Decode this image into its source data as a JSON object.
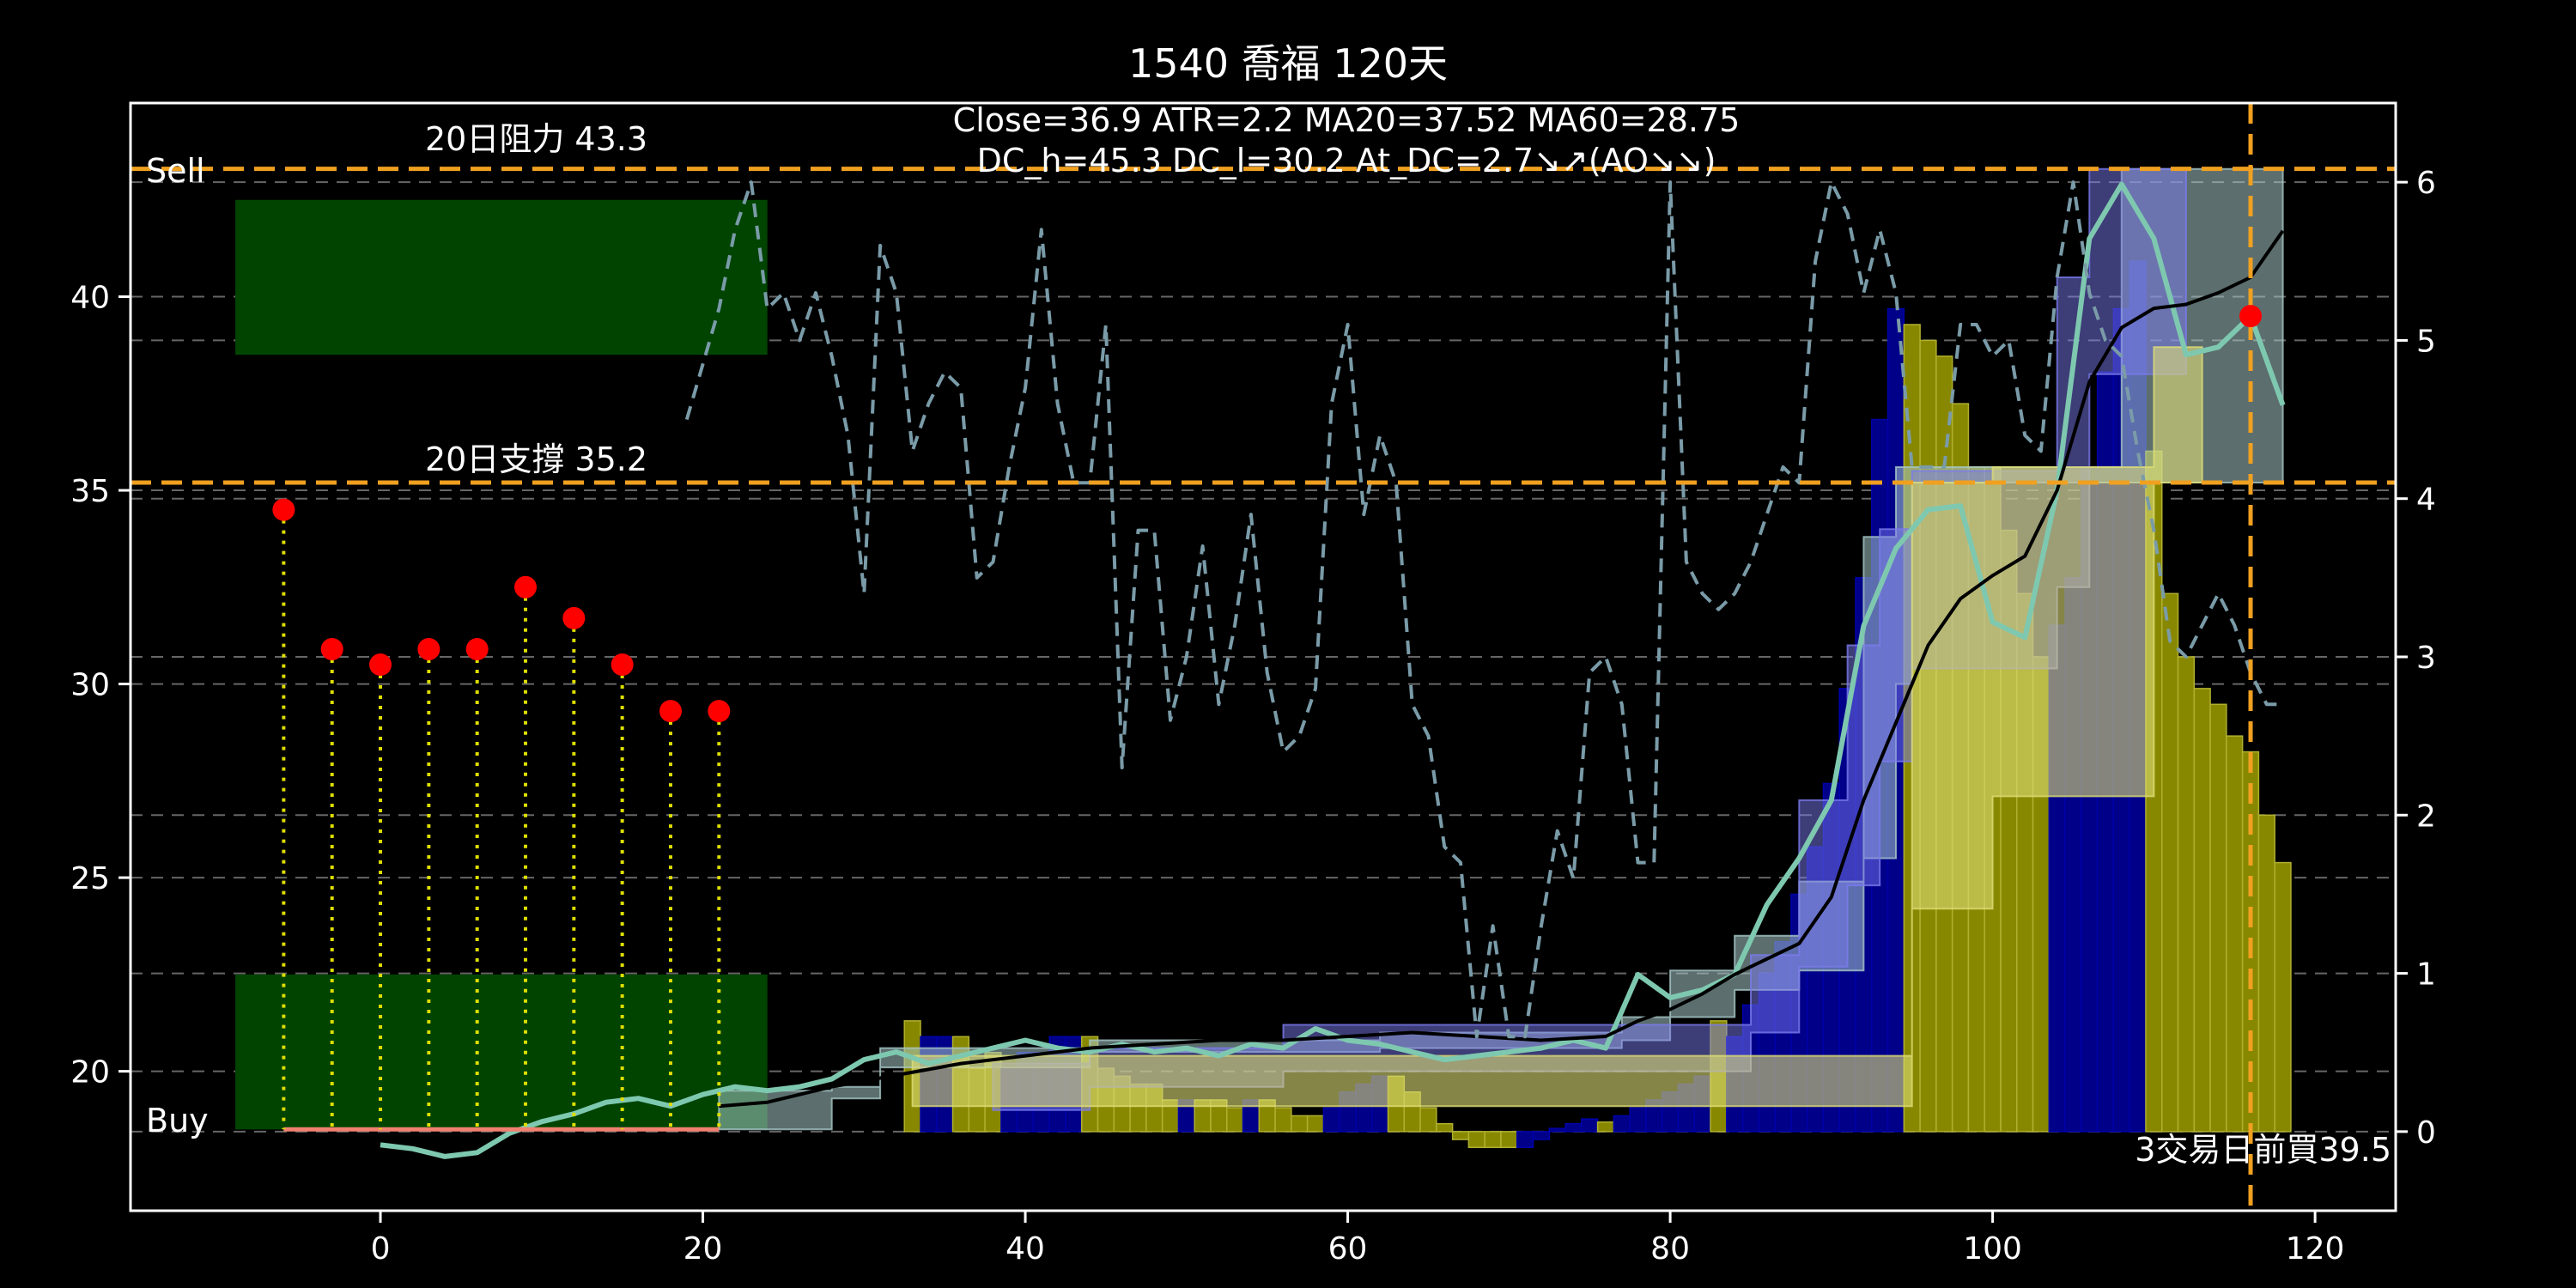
{
  "chart_data": {
    "type": "line",
    "title": "1540 喬福 120天",
    "stats": [
      "Close=36.9 ATR=2.2 MA20=37.52 MA60=28.75",
      "DC_h=45.3 DC_l=30.2 At_DC=2.7↘↗(AO↘↘)"
    ],
    "x_ticks": [
      0,
      20,
      40,
      60,
      80,
      100,
      120
    ],
    "y_left_ticks": [
      20,
      25,
      30,
      35,
      40
    ],
    "y_right_ticks": [
      0,
      1,
      2,
      3,
      4,
      5,
      6
    ],
    "xlim": [
      -15.5,
      125
    ],
    "ylim_left": [
      16.4,
      45
    ],
    "ylim_right": [
      -0.5,
      6.5
    ],
    "grid": "horizontal dashed",
    "resistance": {
      "value": 43.3,
      "label": "20日阻力 43.3"
    },
    "support": {
      "value": 35.2,
      "label": "20日支撐 35.2"
    },
    "zones": [
      {
        "label": "Sell",
        "x0": -9,
        "x1": 24,
        "y0": 38.5,
        "y1": 42.5,
        "color": "#004400"
      },
      {
        "label": "Buy",
        "x0": -9,
        "x1": 24,
        "y0": 18.5,
        "y1": 22.5,
        "color": "#004400"
      }
    ],
    "buy_note": "3交易日前買39.5",
    "buy_day": 116,
    "buy_price": 39.5,
    "red_points": {
      "x": [
        -6,
        -3,
        0,
        3,
        6,
        9,
        12,
        15,
        18,
        21
      ],
      "y": [
        34.5,
        30.9,
        30.5,
        30.9,
        30.9,
        32.5,
        31.7,
        30.5,
        29.3,
        29.3
      ]
    },
    "baseline": {
      "x": [
        -6,
        21
      ],
      "y": 18.5
    },
    "series": [
      {
        "role": "close",
        "color": "#7ec8b0",
        "axis": "left",
        "x": [
          0,
          2,
          4,
          6,
          8,
          10,
          12,
          14,
          16,
          18,
          20,
          22,
          24,
          26,
          28,
          30,
          32,
          34,
          36,
          38,
          40,
          42,
          44,
          46,
          48,
          50,
          52,
          54,
          56,
          58,
          60,
          62,
          64,
          66,
          68,
          70,
          72,
          74,
          76,
          78,
          80,
          82,
          84,
          86,
          88,
          90,
          92,
          94,
          96,
          98,
          100,
          102,
          104,
          106,
          108,
          110,
          112,
          114,
          116,
          118
        ],
        "y": [
          18.1,
          18.0,
          17.8,
          17.9,
          18.4,
          18.7,
          18.9,
          19.2,
          19.3,
          19.1,
          19.4,
          19.6,
          19.5,
          19.6,
          19.8,
          20.3,
          20.5,
          20.2,
          20.4,
          20.6,
          20.8,
          20.6,
          20.5,
          20.7,
          20.5,
          20.6,
          20.4,
          20.7,
          20.6,
          21.1,
          20.8,
          20.7,
          20.5,
          20.3,
          20.4,
          20.5,
          20.6,
          20.8,
          20.6,
          22.5,
          21.9,
          22.1,
          22.5,
          24.3,
          25.5,
          27.0,
          31.5,
          33.5,
          34.5,
          34.6,
          31.6,
          31.2,
          35.0,
          41.5,
          42.9,
          41.5,
          38.5,
          38.7,
          39.5,
          37.2
        ]
      },
      {
        "role": "ma",
        "color": "#000000",
        "axis": "left",
        "x": [
          21,
          24,
          28,
          32,
          36,
          40,
          44,
          48,
          52,
          56,
          60,
          64,
          68,
          72,
          76,
          78,
          80,
          82,
          84,
          86,
          88,
          90,
          92,
          94,
          96,
          98,
          100,
          102,
          104,
          106,
          108,
          110,
          112,
          114,
          116,
          118
        ],
        "y": [
          19.1,
          19.2,
          19.6,
          19.9,
          20.2,
          20.4,
          20.6,
          20.7,
          20.8,
          20.8,
          20.9,
          21.0,
          20.9,
          20.8,
          20.9,
          21.3,
          21.6,
          22.0,
          22.5,
          22.9,
          23.3,
          24.5,
          27.0,
          29.0,
          31.0,
          32.2,
          32.8,
          33.3,
          35.0,
          37.8,
          39.2,
          39.7,
          39.8,
          40.1,
          40.5,
          41.7
        ]
      },
      {
        "role": "atr",
        "color": "#7a9ba8",
        "axis": "right",
        "dash": true,
        "x": [
          19,
          21,
          22,
          23,
          24,
          25,
          26,
          27,
          28,
          29,
          30,
          31,
          32,
          33,
          34,
          35,
          36,
          37,
          38,
          39,
          40,
          41,
          42,
          43,
          44,
          45,
          46,
          47,
          48,
          49,
          50,
          51,
          52,
          53,
          54,
          55,
          56,
          57,
          58,
          59,
          60,
          61,
          62,
          63,
          64,
          65,
          66,
          67,
          68,
          69,
          70,
          71,
          72,
          73,
          74,
          75,
          76,
          77,
          78,
          79,
          80,
          81,
          82,
          83,
          84,
          85,
          86,
          87,
          88,
          89,
          90,
          91,
          92,
          93,
          94,
          95,
          96,
          97,
          98,
          99,
          100,
          101,
          102,
          103,
          104,
          105,
          106,
          107,
          108,
          109,
          110,
          111,
          112,
          113,
          114,
          115,
          116,
          117,
          118
        ],
        "y": [
          4.5,
          5.2,
          5.7,
          6.0,
          5.2,
          5.3,
          5.0,
          5.3,
          4.9,
          4.4,
          3.4,
          5.6,
          5.3,
          4.3,
          4.6,
          4.8,
          4.7,
          3.5,
          3.6,
          4.2,
          4.7,
          5.7,
          4.6,
          4.1,
          4.1,
          5.1,
          2.3,
          3.8,
          3.8,
          2.6,
          3.0,
          3.7,
          2.7,
          3.2,
          3.9,
          2.9,
          2.4,
          2.5,
          2.8,
          4.6,
          5.1,
          3.9,
          4.4,
          4.1,
          2.7,
          2.5,
          1.8,
          1.7,
          0.6,
          1.3,
          0.6,
          0.6,
          1.3,
          1.9,
          1.6,
          2.9,
          3.0,
          2.7,
          1.7,
          1.7,
          6.0,
          3.6,
          3.4,
          3.3,
          3.4,
          3.6,
          3.9,
          4.2,
          4.1,
          5.5,
          6.0,
          5.8,
          5.3,
          5.7,
          5.3,
          4.2,
          4.2,
          4.2,
          5.1,
          5.1,
          4.9,
          5.0,
          4.4,
          4.3,
          5.4,
          6.0,
          5.3,
          5.0,
          4.9,
          4.3,
          3.8,
          3.1,
          3.0,
          3.2,
          3.4,
          3.2,
          2.9,
          2.7,
          2.7
        ]
      }
    ],
    "hist_bars": [
      {
        "x": 33,
        "v": 0.7,
        "c": "y"
      },
      {
        "x": 34,
        "v": 0.6,
        "c": "b"
      },
      {
        "x": 35,
        "v": 0.6,
        "c": "b"
      },
      {
        "x": 36,
        "v": 0.6,
        "c": "y"
      },
      {
        "x": 37,
        "v": 0.4,
        "c": "y"
      },
      {
        "x": 38,
        "v": 0.5,
        "c": "y"
      },
      {
        "x": 39,
        "v": 0.4,
        "c": "b"
      },
      {
        "x": 40,
        "v": 0.5,
        "c": "b"
      },
      {
        "x": 41,
        "v": 0.5,
        "c": "b"
      },
      {
        "x": 42,
        "v": 0.6,
        "c": "b"
      },
      {
        "x": 43,
        "v": 0.6,
        "c": "b"
      },
      {
        "x": 44,
        "v": 0.6,
        "c": "y"
      },
      {
        "x": 45,
        "v": 0.4,
        "c": "y"
      },
      {
        "x": 46,
        "v": 0.35,
        "c": "y"
      },
      {
        "x": 47,
        "v": 0.3,
        "c": "y"
      },
      {
        "x": 48,
        "v": 0.3,
        "c": "y"
      },
      {
        "x": 49,
        "v": 0.2,
        "c": "y"
      },
      {
        "x": 50,
        "v": 0.2,
        "c": "b"
      },
      {
        "x": 51,
        "v": 0.2,
        "c": "y"
      },
      {
        "x": 52,
        "v": 0.2,
        "c": "y"
      },
      {
        "x": 53,
        "v": 0.15,
        "c": "y"
      },
      {
        "x": 54,
        "v": 0.2,
        "c": "b"
      },
      {
        "x": 55,
        "v": 0.2,
        "c": "y"
      },
      {
        "x": 56,
        "v": 0.15,
        "c": "y"
      },
      {
        "x": 57,
        "v": 0.1,
        "c": "y"
      },
      {
        "x": 58,
        "v": 0.1,
        "c": "y"
      },
      {
        "x": 59,
        "v": 0.15,
        "c": "b"
      },
      {
        "x": 60,
        "v": 0.25,
        "c": "b"
      },
      {
        "x": 61,
        "v": 0.3,
        "c": "b"
      },
      {
        "x": 62,
        "v": 0.35,
        "c": "b"
      },
      {
        "x": 63,
        "v": 0.35,
        "c": "y"
      },
      {
        "x": 64,
        "v": 0.25,
        "c": "y"
      },
      {
        "x": 65,
        "v": 0.15,
        "c": "y"
      },
      {
        "x": 66,
        "v": 0.05,
        "c": "y"
      },
      {
        "x": 67,
        "v": -0.05,
        "c": "y"
      },
      {
        "x": 68,
        "v": -0.1,
        "c": "y"
      },
      {
        "x": 69,
        "v": -0.1,
        "c": "y"
      },
      {
        "x": 70,
        "v": -0.1,
        "c": "y"
      },
      {
        "x": 71,
        "v": -0.1,
        "c": "b"
      },
      {
        "x": 72,
        "v": -0.05,
        "c": "b"
      },
      {
        "x": 73,
        "v": 0.02,
        "c": "b"
      },
      {
        "x": 74,
        "v": 0.05,
        "c": "b"
      },
      {
        "x": 75,
        "v": 0.08,
        "c": "b"
      },
      {
        "x": 76,
        "v": 0.06,
        "c": "y"
      },
      {
        "x": 77,
        "v": 0.1,
        "c": "b"
      },
      {
        "x": 78,
        "v": 0.15,
        "c": "b"
      },
      {
        "x": 79,
        "v": 0.2,
        "c": "b"
      },
      {
        "x": 80,
        "v": 0.25,
        "c": "b"
      },
      {
        "x": 81,
        "v": 0.3,
        "c": "b"
      },
      {
        "x": 82,
        "v": 0.35,
        "c": "b"
      },
      {
        "x": 83,
        "v": 0.7,
        "c": "y"
      },
      {
        "x": 84,
        "v": 0.6,
        "c": "b"
      },
      {
        "x": 85,
        "v": 0.8,
        "c": "b"
      },
      {
        "x": 86,
        "v": 1.0,
        "c": "b"
      },
      {
        "x": 87,
        "v": 1.2,
        "c": "b"
      },
      {
        "x": 88,
        "v": 1.5,
        "c": "b"
      },
      {
        "x": 89,
        "v": 1.8,
        "c": "b"
      },
      {
        "x": 90,
        "v": 2.2,
        "c": "b"
      },
      {
        "x": 91,
        "v": 2.8,
        "c": "b"
      },
      {
        "x": 92,
        "v": 3.5,
        "c": "b"
      },
      {
        "x": 93,
        "v": 4.5,
        "c": "b"
      },
      {
        "x": 94,
        "v": 5.2,
        "c": "b"
      },
      {
        "x": 95,
        "v": 5.1,
        "c": "y"
      },
      {
        "x": 96,
        "v": 5.0,
        "c": "y"
      },
      {
        "x": 97,
        "v": 4.9,
        "c": "y"
      },
      {
        "x": 98,
        "v": 4.6,
        "c": "y"
      },
      {
        "x": 99,
        "v": 4.2,
        "c": "y"
      },
      {
        "x": 100,
        "v": 4.2,
        "c": "y"
      },
      {
        "x": 101,
        "v": 3.8,
        "c": "y"
      },
      {
        "x": 102,
        "v": 3.4,
        "c": "y"
      },
      {
        "x": 103,
        "v": 3.0,
        "c": "y"
      },
      {
        "x": 104,
        "v": 3.2,
        "c": "b"
      },
      {
        "x": 105,
        "v": 3.5,
        "c": "b"
      },
      {
        "x": 106,
        "v": 4.2,
        "c": "b"
      },
      {
        "x": 107,
        "v": 4.8,
        "c": "b"
      },
      {
        "x": 108,
        "v": 5.2,
        "c": "b"
      },
      {
        "x": 109,
        "v": 5.5,
        "c": "b"
      },
      {
        "x": 110,
        "v": 4.3,
        "c": "y"
      },
      {
        "x": 111,
        "v": 3.4,
        "c": "y"
      },
      {
        "x": 112,
        "v": 3.0,
        "c": "y"
      },
      {
        "x": 113,
        "v": 2.8,
        "c": "y"
      },
      {
        "x": 114,
        "v": 2.7,
        "c": "y"
      },
      {
        "x": 115,
        "v": 2.5,
        "c": "y"
      },
      {
        "x": 116,
        "v": 2.4,
        "c": "y"
      },
      {
        "x": 117,
        "v": 2.0,
        "c": "y"
      },
      {
        "x": 118,
        "v": 1.7,
        "c": "y"
      }
    ],
    "bands": [
      {
        "color": "#a8c8c8",
        "opacity": 0.55,
        "x": [
          21,
          28,
          28,
          31,
          31,
          44,
          44,
          62,
          62,
          77,
          77,
          80,
          80,
          84,
          84,
          88,
          88,
          92,
          92,
          94,
          94,
          95,
          95,
          108,
          108,
          112,
          112,
          118
        ],
        "lo": [
          18.5,
          18.5,
          19.3,
          19.3,
          20.1,
          20.1,
          20.5,
          20.5,
          20.6,
          20.6,
          20.8,
          20.8,
          21.4,
          21.4,
          22.1,
          22.1,
          22.6,
          22.6,
          25.5,
          25.5,
          30.0,
          30.0,
          35.2,
          35.2,
          35.2,
          35.2,
          35.2,
          35.2
        ],
        "hi": [
          19.5,
          19.5,
          19.6,
          19.6,
          20.6,
          20.6,
          20.8,
          20.8,
          21.0,
          21.0,
          21.4,
          21.4,
          22.6,
          22.6,
          23.5,
          23.5,
          24.9,
          24.9,
          33.8,
          33.8,
          35.6,
          35.6,
          35.6,
          35.6,
          43.3,
          43.3,
          43.3,
          43.3
        ]
      },
      {
        "color": "#7a7aee",
        "opacity": 0.5,
        "x": [
          38,
          44,
          44,
          56,
          56,
          85,
          85,
          88,
          88,
          91,
          91,
          93,
          93,
          95,
          95,
          104,
          104,
          106,
          106,
          110,
          110,
          112
        ],
        "lo": [
          19.0,
          19.0,
          19.6,
          19.6,
          20.0,
          20.0,
          21.0,
          21.0,
          22.7,
          22.7,
          24.8,
          24.8,
          28.0,
          28.0,
          30.4,
          30.4,
          32.5,
          32.5,
          38.0,
          38.0,
          38.0,
          38.0
        ],
        "hi": [
          20.2,
          20.2,
          20.6,
          20.6,
          21.2,
          21.2,
          23.0,
          23.0,
          27.0,
          27.0,
          31.0,
          31.0,
          34.0,
          34.0,
          35.5,
          35.5,
          40.5,
          40.5,
          43.3,
          43.3,
          43.3,
          43.3
        ]
      },
      {
        "color": "#dddd77",
        "opacity": 0.6,
        "x": [
          33,
          38,
          38,
          56,
          56,
          95,
          95,
          100,
          100,
          103,
          103,
          110,
          110,
          113
        ],
        "lo": [
          19.1,
          19.1,
          19.1,
          19.1,
          19.1,
          19.1,
          24.2,
          24.2,
          27.1,
          27.1,
          27.1,
          27.1,
          35.2,
          35.2
        ],
        "hi": [
          20.4,
          20.4,
          20.4,
          20.4,
          20.4,
          20.4,
          35.2,
          35.2,
          35.6,
          35.6,
          35.6,
          35.6,
          38.7,
          38.7
        ]
      }
    ]
  }
}
